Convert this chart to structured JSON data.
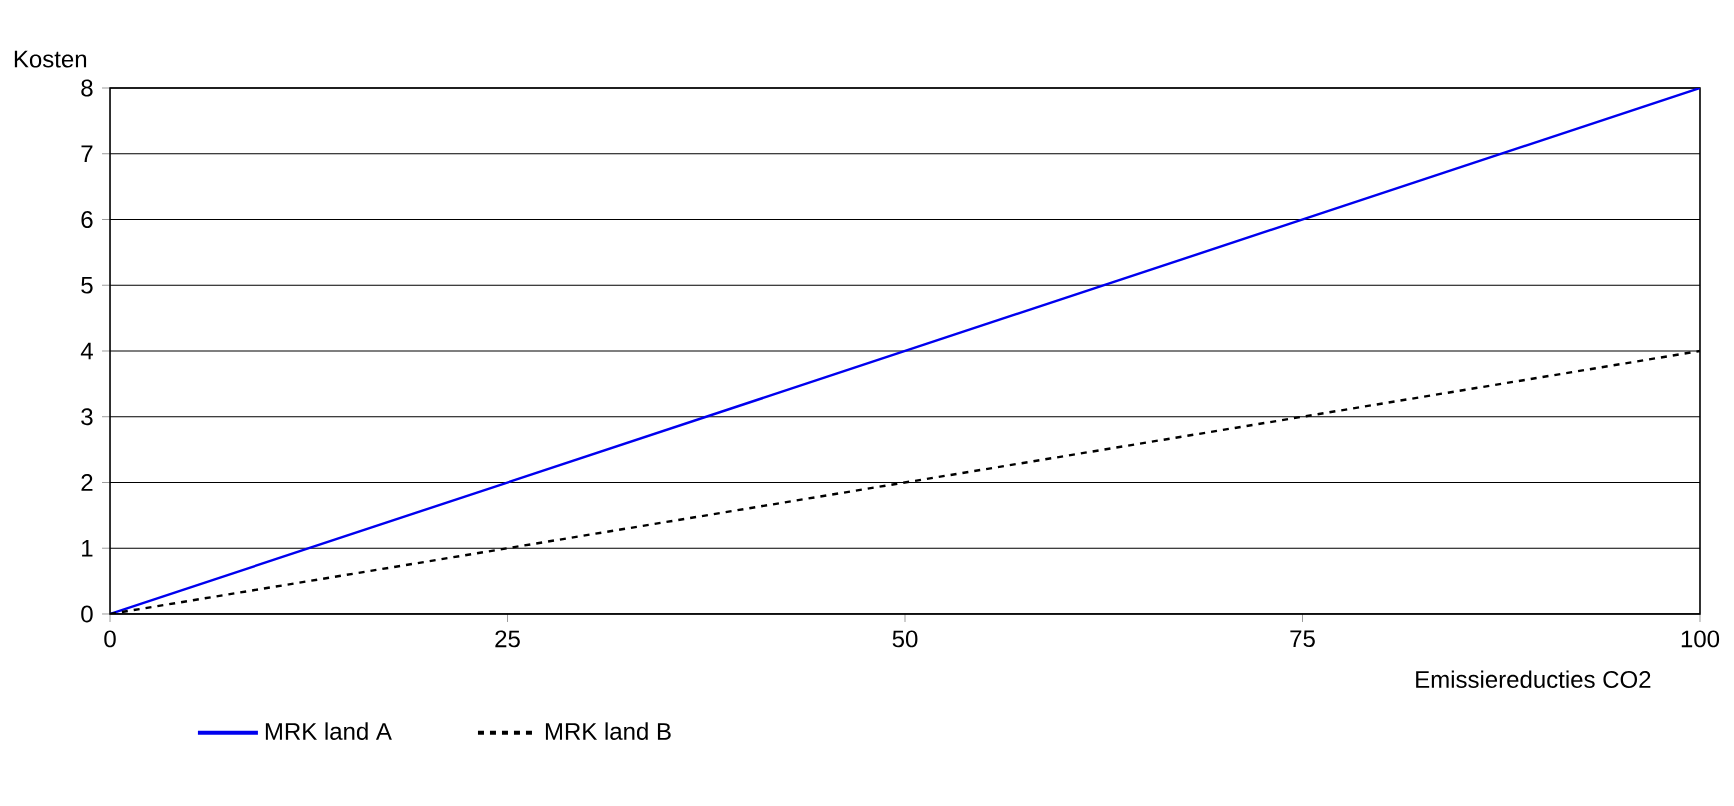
{
  "chart_data": {
    "type": "line",
    "xlabel": "Emissiereducties CO2",
    "ylabel": "Kosten",
    "x": [
      0,
      100
    ],
    "series": [
      {
        "name": "MRK land A",
        "color": "#0000ee",
        "values": [
          0,
          8
        ],
        "line_style": "solid"
      },
      {
        "name": "MRK land B",
        "color": "#000000",
        "values": [
          0,
          4
        ],
        "line_style": "dashed"
      }
    ],
    "xlim": [
      0,
      100
    ],
    "ylim": [
      0,
      8
    ],
    "xticks": [
      0,
      25,
      50,
      75,
      100
    ],
    "yticks": [
      0,
      1,
      2,
      3,
      4,
      5,
      6,
      7,
      8
    ],
    "grid": "y",
    "legend": "bottom"
  }
}
